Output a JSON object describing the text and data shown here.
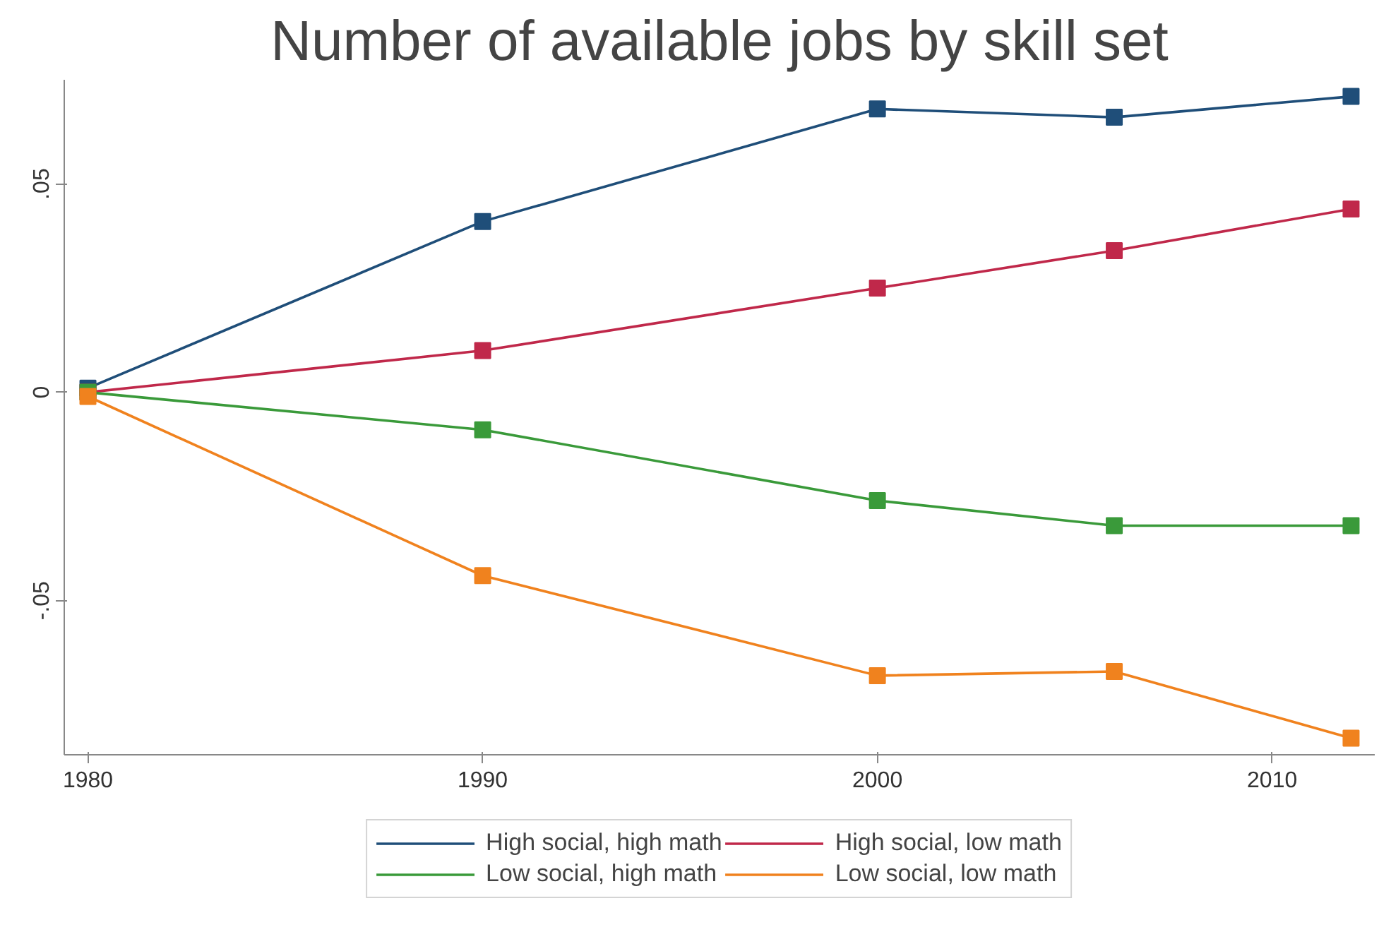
{
  "chart_data": {
    "type": "line",
    "title": "Number of available jobs by skill set",
    "x": [
      1980,
      1990,
      2000,
      2006,
      2012
    ],
    "xlim": [
      1979.4,
      2012.6
    ],
    "xticks": [
      1980,
      1990,
      2000,
      2010
    ],
    "ylim": [
      -0.087,
      0.075
    ],
    "yticks": [
      {
        "value": -0.05,
        "label": "-.05"
      },
      0,
      {
        "value": 0.05,
        "label": ".05"
      }
    ],
    "marker": "square",
    "line_style": "solid",
    "grid": false,
    "legend": "bottom",
    "series": [
      {
        "name": "High social, high math",
        "color": "#1f4e79",
        "values": [
          0.001,
          0.041,
          0.068,
          0.066,
          0.071
        ]
      },
      {
        "name": "High social, low math",
        "color": "#c0284a",
        "values": [
          0.0,
          0.01,
          0.025,
          0.034,
          0.044
        ]
      },
      {
        "name": "Low social, high math",
        "color": "#3a9a3a",
        "values": [
          0.0,
          -0.009,
          -0.026,
          -0.032,
          -0.032
        ]
      },
      {
        "name": "Low social, low math",
        "color": "#f0821e",
        "values": [
          -0.001,
          -0.044,
          -0.068,
          -0.067,
          -0.083
        ]
      }
    ]
  }
}
